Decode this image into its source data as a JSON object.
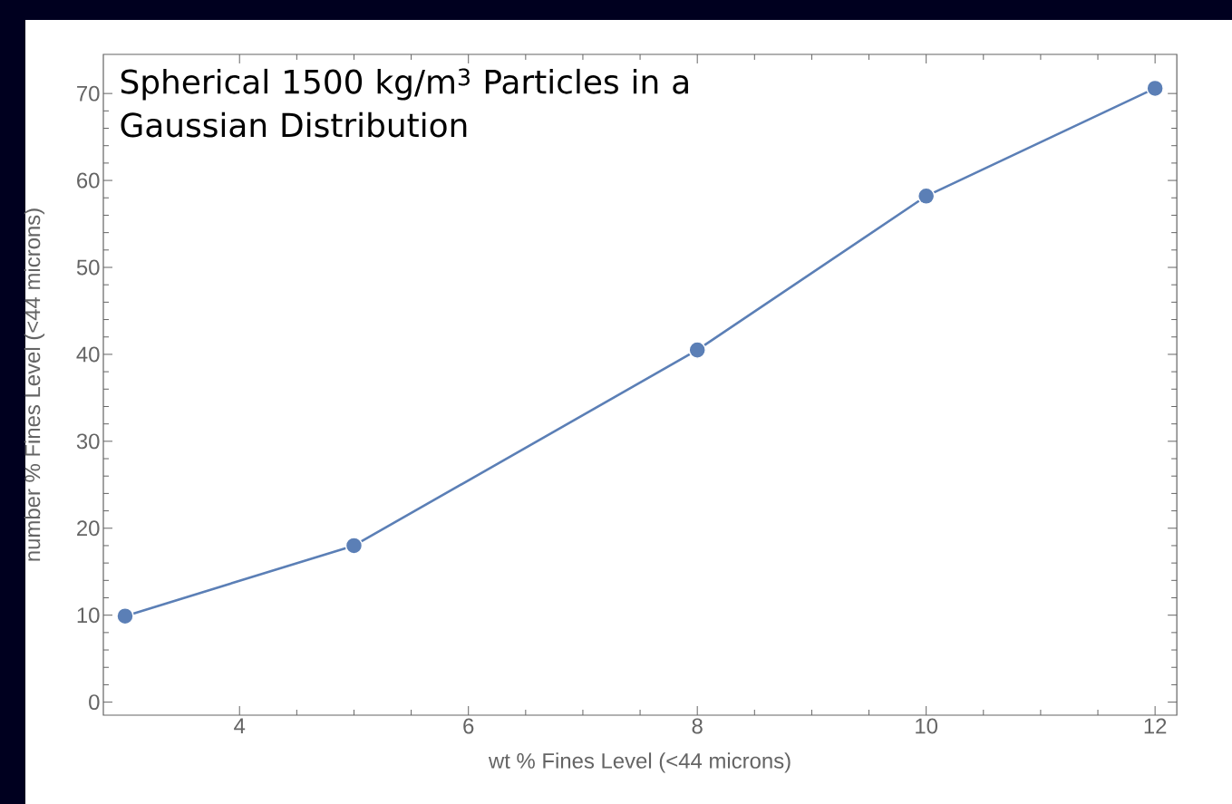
{
  "chart_data": {
    "type": "line",
    "title": "Spherical 1500 kg/m$^{3}$ Particles in a Gaussian Distribution",
    "xlabel": "wt % Fines Level (<44 microns)",
    "ylabel": "number % Fines Level (<44 microns)",
    "x": [
      3,
      5,
      8,
      10,
      12
    ],
    "series": [
      {
        "color": "#5b7fb6",
        "values": [
          9.9,
          18.0,
          40.5,
          58.2,
          70.6
        ]
      }
    ],
    "xlim": [
      2.81,
      12.19
    ],
    "ylim": [
      -1.5,
      74.5
    ],
    "xticks": [
      4,
      6,
      8,
      10,
      12
    ],
    "yticks": [
      0,
      10,
      20,
      30,
      40,
      50,
      60,
      70
    ],
    "marker": "circle",
    "line_style": "solid",
    "grid": false
  }
}
